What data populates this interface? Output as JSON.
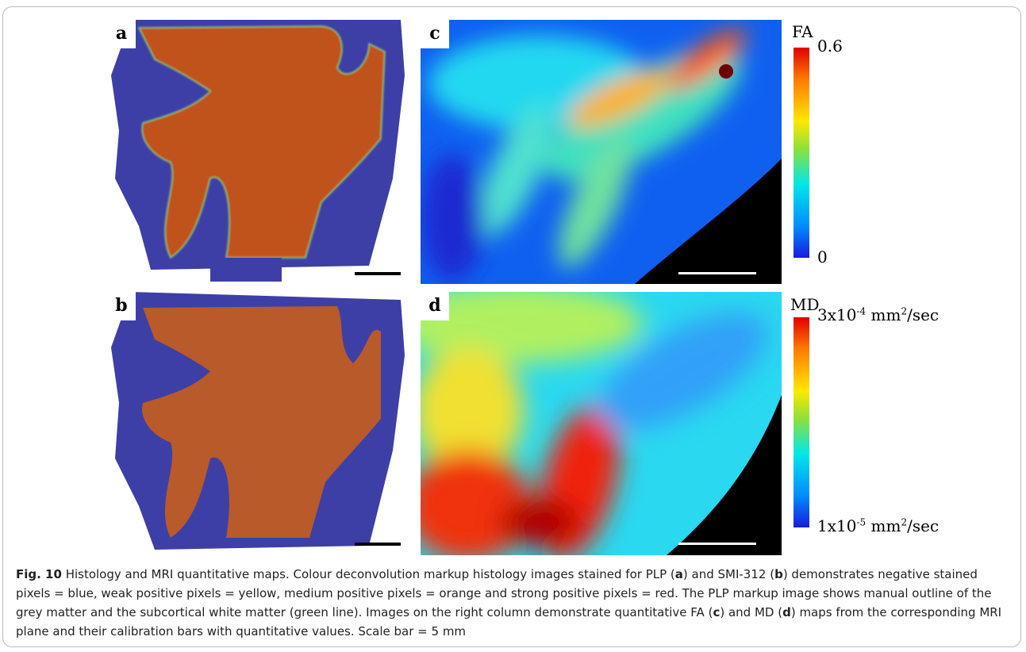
{
  "panels": [
    {
      "label": "a"
    },
    {
      "label": "b"
    },
    {
      "label": "c"
    },
    {
      "label": "d"
    }
  ],
  "colorbars": [
    {
      "title": "FA",
      "max_label": [
        {
          "text": "0.6"
        }
      ],
      "min_label": [
        {
          "text": "0"
        }
      ]
    },
    {
      "title": "MD",
      "max_label": [
        {
          "text": "3x10"
        },
        {
          "text": "-4",
          "sup": true
        },
        {
          "text": " mm"
        },
        {
          "text": "2",
          "sup": true
        },
        {
          "text": "/sec"
        }
      ],
      "min_label": [
        {
          "text": "1x10"
        },
        {
          "text": "-5",
          "sup": true
        },
        {
          "text": " mm"
        },
        {
          "text": "2",
          "sup": true
        },
        {
          "text": "/sec"
        }
      ]
    }
  ],
  "caption": [
    {
      "text": "Fig. 10",
      "bold": true
    },
    {
      "text": "  Histology and MRI quantitative maps. Colour deconvolution markup histology images stained for PLP ("
    },
    {
      "text": "a",
      "bold": true
    },
    {
      "text": ") and SMI-312 ("
    },
    {
      "text": "b",
      "bold": true
    },
    {
      "text": ") demonstrates negative stained pixels = blue, weak positive pixels = yellow, medium positive pixels = orange and strong positive pixels = red. The PLP markup image shows manual outline of the grey matter and the subcortical white matter (green line). Images on the right column demonstrate quantitative FA ("
    },
    {
      "text": "c",
      "bold": true
    },
    {
      "text": ") and MD ("
    },
    {
      "text": "d",
      "bold": true
    },
    {
      "text": ") maps from the corresponding MRI plane and their calibration bars with quantitative values. Scale bar = 5 mm"
    }
  ]
}
